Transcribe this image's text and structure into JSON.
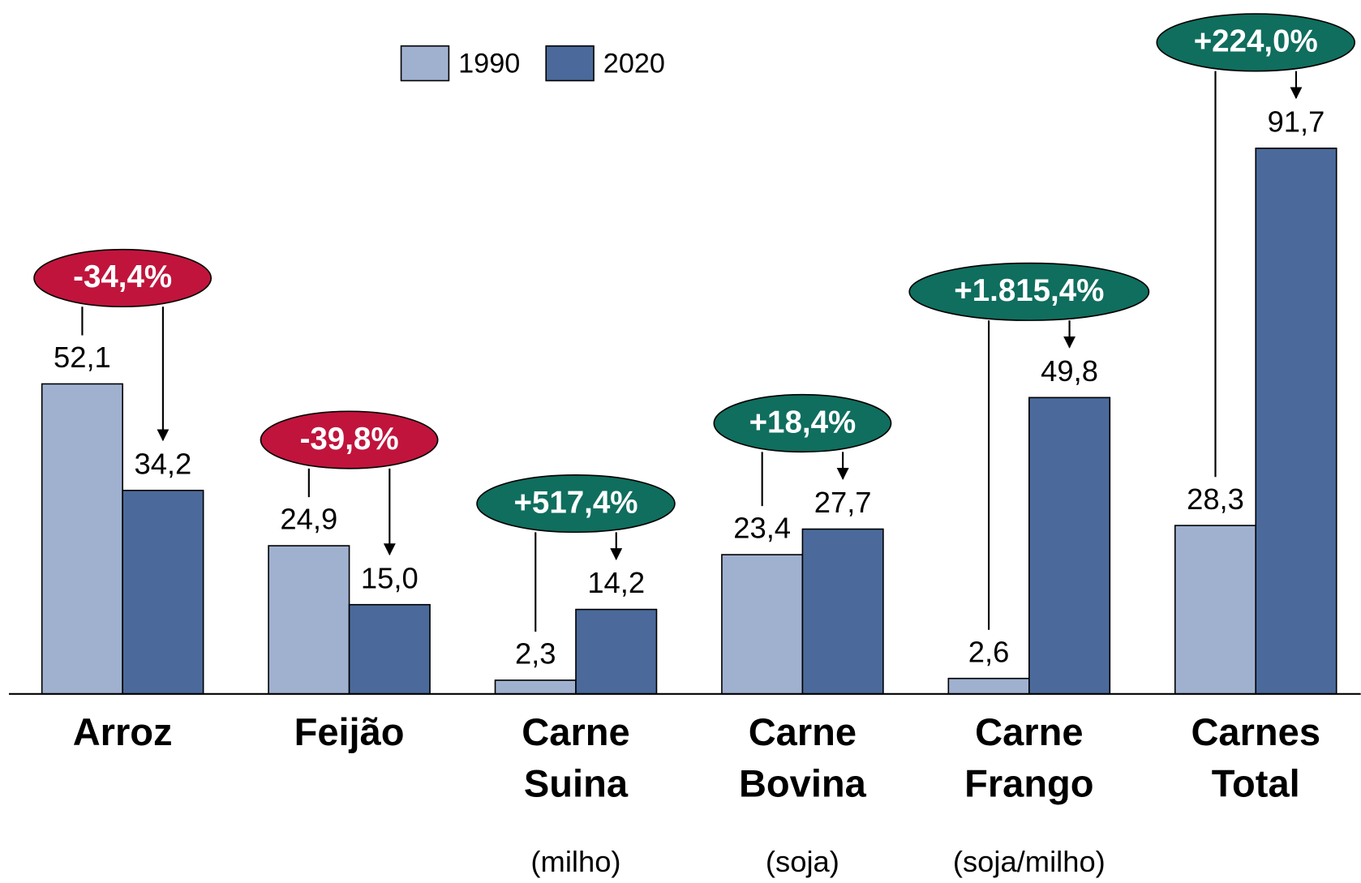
{
  "chart_data": {
    "type": "bar",
    "categories": [
      "Arroz",
      "Feijão",
      "Carne\nSuina",
      "Carne\nBovina",
      "Carne\nFrango",
      "Carnes\nTotal"
    ],
    "notes": [
      null,
      null,
      "(milho)",
      "(soja)",
      "(soja/milho)",
      null
    ],
    "series": [
      {
        "name": "1990",
        "color": "#a0b1d0",
        "values": [
          52.1,
          24.9,
          2.3,
          23.4,
          2.6,
          28.3
        ],
        "value_labels": [
          "52,1",
          "24,9",
          "2,3",
          "23,4",
          "2,6",
          "28,3"
        ]
      },
      {
        "name": "2020",
        "color": "#4b6a9b",
        "values": [
          34.2,
          15.0,
          14.2,
          27.7,
          49.8,
          91.7
        ],
        "value_labels": [
          "34,2",
          "15,0",
          "14,2",
          "27,7",
          "49,8",
          "91,7"
        ]
      }
    ],
    "changes": {
      "values": [
        -34.4,
        -39.8,
        517.4,
        18.4,
        1815.4,
        224.0
      ],
      "value_labels": [
        "-34,4%",
        "-39,8%",
        "+517,4%",
        "+18,4%",
        "+1.815,4%",
        "+224,0%"
      ],
      "negative_color": "#c0143c",
      "positive_color": "#0f6e5e"
    },
    "ylim": [
      0,
      100
    ],
    "legend": "top"
  }
}
